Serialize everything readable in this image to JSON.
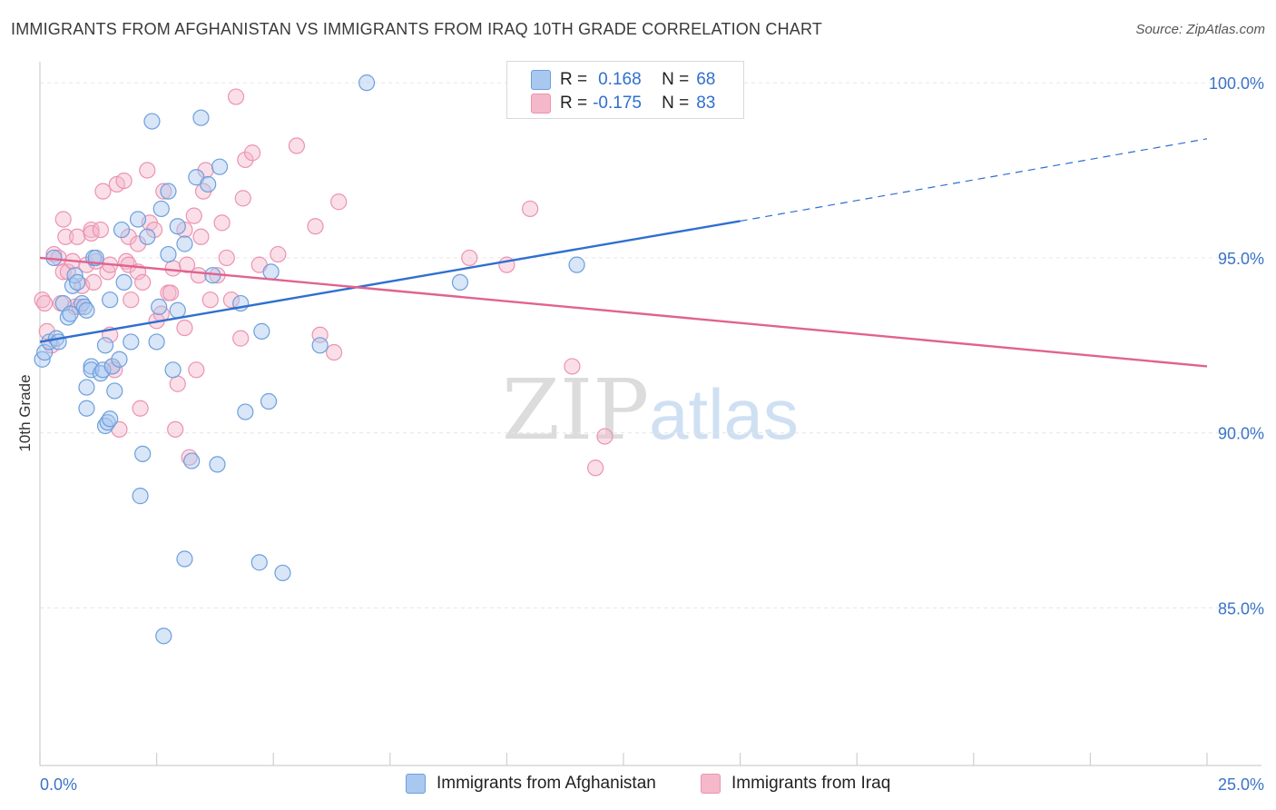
{
  "title": "IMMIGRANTS FROM AFGHANISTAN VS IMMIGRANTS FROM IRAQ 10TH GRADE CORRELATION CHART",
  "source": "Source: ZipAtlas.com",
  "watermark": {
    "zip": "ZIP",
    "atlas": "atlas"
  },
  "legend": {
    "afghanistan": {
      "r_label": "R =",
      "r_value": "0.168",
      "n_label": "N =",
      "n_value": "68"
    },
    "iraq": {
      "r_label": "R =",
      "r_value": "-0.175",
      "n_label": "N =",
      "n_value": "83"
    }
  },
  "bottom_legend": {
    "afghanistan": "Immigrants from Afghanistan",
    "iraq": "Immigrants from Iraq"
  },
  "colors": {
    "afghanistan_fill": "#a9c8f0",
    "afghanistan_stroke": "#6d9fdc",
    "afghanistan_line": "#2f6fd0",
    "iraq_fill": "#f5b8cb",
    "iraq_stroke": "#ec93b0",
    "iraq_line": "#e0638f",
    "tick_label": "#3a73c8",
    "grid": "#e6e6e6"
  },
  "chart_data": {
    "type": "scatter",
    "ylabel": "10th Grade",
    "xlim": [
      0,
      25
    ],
    "ylim": [
      80.5,
      100.6
    ],
    "x_tick_labels": [
      "0.0%",
      "25.0%"
    ],
    "x_tick_values": [
      0,
      25
    ],
    "y_ticks": [
      {
        "value": 100,
        "label": "100.0%"
      },
      {
        "value": 95,
        "label": "95.0%"
      },
      {
        "value": 90,
        "label": "90.0%"
      },
      {
        "value": 85,
        "label": "85.0%"
      }
    ],
    "grid": true,
    "series": [
      {
        "name": "Immigrants from Afghanistan",
        "color": "#6d9fdc",
        "trend": {
          "x0": 0,
          "y0": 92.6,
          "x1": 15,
          "y1": 96.05,
          "dash_to_x": 25,
          "dash_to_y": 98.4
        },
        "points": [
          [
            0.05,
            92.1
          ],
          [
            0.1,
            92.3
          ],
          [
            0.2,
            92.6
          ],
          [
            0.3,
            95.0
          ],
          [
            0.35,
            92.7
          ],
          [
            0.4,
            92.6
          ],
          [
            0.5,
            93.7
          ],
          [
            0.6,
            93.3
          ],
          [
            0.65,
            93.4
          ],
          [
            0.7,
            94.2
          ],
          [
            0.75,
            94.5
          ],
          [
            0.8,
            94.3
          ],
          [
            0.9,
            93.7
          ],
          [
            0.95,
            93.6
          ],
          [
            1.0,
            93.5
          ],
          [
            1.0,
            90.7
          ],
          [
            1.0,
            91.3
          ],
          [
            1.1,
            91.9
          ],
          [
            1.1,
            91.8
          ],
          [
            1.15,
            95.0
          ],
          [
            1.2,
            95.0
          ],
          [
            1.3,
            91.7
          ],
          [
            1.35,
            91.8
          ],
          [
            1.4,
            92.5
          ],
          [
            1.4,
            90.2
          ],
          [
            1.45,
            90.3
          ],
          [
            1.5,
            90.4
          ],
          [
            1.5,
            93.8
          ],
          [
            1.55,
            91.9
          ],
          [
            1.6,
            91.2
          ],
          [
            1.7,
            92.1
          ],
          [
            1.75,
            95.8
          ],
          [
            1.8,
            94.3
          ],
          [
            1.95,
            92.6
          ],
          [
            2.1,
            96.1
          ],
          [
            2.15,
            88.2
          ],
          [
            2.2,
            89.4
          ],
          [
            2.3,
            95.6
          ],
          [
            2.4,
            98.9
          ],
          [
            2.5,
            92.6
          ],
          [
            2.55,
            93.6
          ],
          [
            2.6,
            96.4
          ],
          [
            2.65,
            84.2
          ],
          [
            2.75,
            96.9
          ],
          [
            2.75,
            95.1
          ],
          [
            2.85,
            91.8
          ],
          [
            2.95,
            95.9
          ],
          [
            2.95,
            93.5
          ],
          [
            3.1,
            95.4
          ],
          [
            3.1,
            86.4
          ],
          [
            3.25,
            89.2
          ],
          [
            3.35,
            97.3
          ],
          [
            3.45,
            99.0
          ],
          [
            3.6,
            97.1
          ],
          [
            3.7,
            94.5
          ],
          [
            3.8,
            89.1
          ],
          [
            3.85,
            97.6
          ],
          [
            4.3,
            93.7
          ],
          [
            4.4,
            90.6
          ],
          [
            4.7,
            86.3
          ],
          [
            4.75,
            92.9
          ],
          [
            4.9,
            90.9
          ],
          [
            4.95,
            94.6
          ],
          [
            5.2,
            86.0
          ],
          [
            6.0,
            92.5
          ],
          [
            7.0,
            100.0
          ],
          [
            9.0,
            94.3
          ],
          [
            11.5,
            94.8
          ]
        ]
      },
      {
        "name": "Immigrants from Iraq",
        "color": "#ec93b0",
        "trend": {
          "x0": 0,
          "y0": 95.0,
          "x1": 25,
          "y1": 91.9
        },
        "points": [
          [
            0.05,
            93.8
          ],
          [
            0.1,
            93.7
          ],
          [
            0.15,
            92.9
          ],
          [
            0.25,
            92.5
          ],
          [
            0.3,
            95.1
          ],
          [
            0.4,
            95.0
          ],
          [
            0.45,
            93.7
          ],
          [
            0.5,
            96.1
          ],
          [
            0.5,
            94.6
          ],
          [
            0.55,
            95.6
          ],
          [
            0.6,
            94.6
          ],
          [
            0.7,
            94.9
          ],
          [
            0.75,
            93.6
          ],
          [
            0.8,
            95.6
          ],
          [
            0.85,
            93.6
          ],
          [
            0.9,
            94.2
          ],
          [
            1.0,
            94.8
          ],
          [
            1.1,
            95.8
          ],
          [
            1.1,
            95.7
          ],
          [
            1.15,
            94.3
          ],
          [
            1.2,
            94.9
          ],
          [
            1.3,
            95.8
          ],
          [
            1.35,
            96.9
          ],
          [
            1.45,
            94.6
          ],
          [
            1.5,
            94.8
          ],
          [
            1.5,
            92.8
          ],
          [
            1.55,
            91.9
          ],
          [
            1.6,
            91.8
          ],
          [
            1.65,
            97.1
          ],
          [
            1.7,
            90.1
          ],
          [
            1.8,
            97.2
          ],
          [
            1.85,
            94.9
          ],
          [
            1.9,
            94.8
          ],
          [
            1.9,
            95.6
          ],
          [
            1.95,
            93.8
          ],
          [
            2.1,
            95.4
          ],
          [
            2.1,
            94.6
          ],
          [
            2.15,
            90.7
          ],
          [
            2.2,
            94.3
          ],
          [
            2.3,
            97.5
          ],
          [
            2.35,
            96.0
          ],
          [
            2.45,
            95.8
          ],
          [
            2.5,
            93.2
          ],
          [
            2.6,
            93.4
          ],
          [
            2.65,
            96.9
          ],
          [
            2.75,
            94.0
          ],
          [
            2.8,
            94.0
          ],
          [
            2.85,
            94.7
          ],
          [
            2.9,
            90.1
          ],
          [
            2.95,
            91.4
          ],
          [
            3.1,
            95.8
          ],
          [
            3.1,
            93.0
          ],
          [
            3.15,
            94.8
          ],
          [
            3.2,
            89.3
          ],
          [
            3.3,
            96.2
          ],
          [
            3.35,
            91.8
          ],
          [
            3.4,
            94.5
          ],
          [
            3.45,
            95.6
          ],
          [
            3.5,
            96.9
          ],
          [
            3.55,
            97.5
          ],
          [
            3.65,
            93.8
          ],
          [
            3.8,
            94.5
          ],
          [
            3.9,
            96.0
          ],
          [
            4.0,
            95.0
          ],
          [
            4.1,
            93.8
          ],
          [
            4.2,
            99.6
          ],
          [
            4.3,
            92.7
          ],
          [
            4.35,
            96.7
          ],
          [
            4.4,
            97.8
          ],
          [
            4.55,
            98.0
          ],
          [
            4.7,
            94.8
          ],
          [
            5.1,
            95.1
          ],
          [
            5.5,
            98.2
          ],
          [
            5.9,
            95.9
          ],
          [
            6.0,
            92.8
          ],
          [
            6.3,
            92.3
          ],
          [
            6.4,
            96.6
          ],
          [
            9.2,
            95.0
          ],
          [
            10.0,
            94.8
          ],
          [
            10.5,
            96.4
          ],
          [
            11.4,
            91.9
          ],
          [
            11.9,
            89.0
          ],
          [
            12.1,
            89.9
          ]
        ]
      }
    ],
    "extra_points_note": ""
  }
}
